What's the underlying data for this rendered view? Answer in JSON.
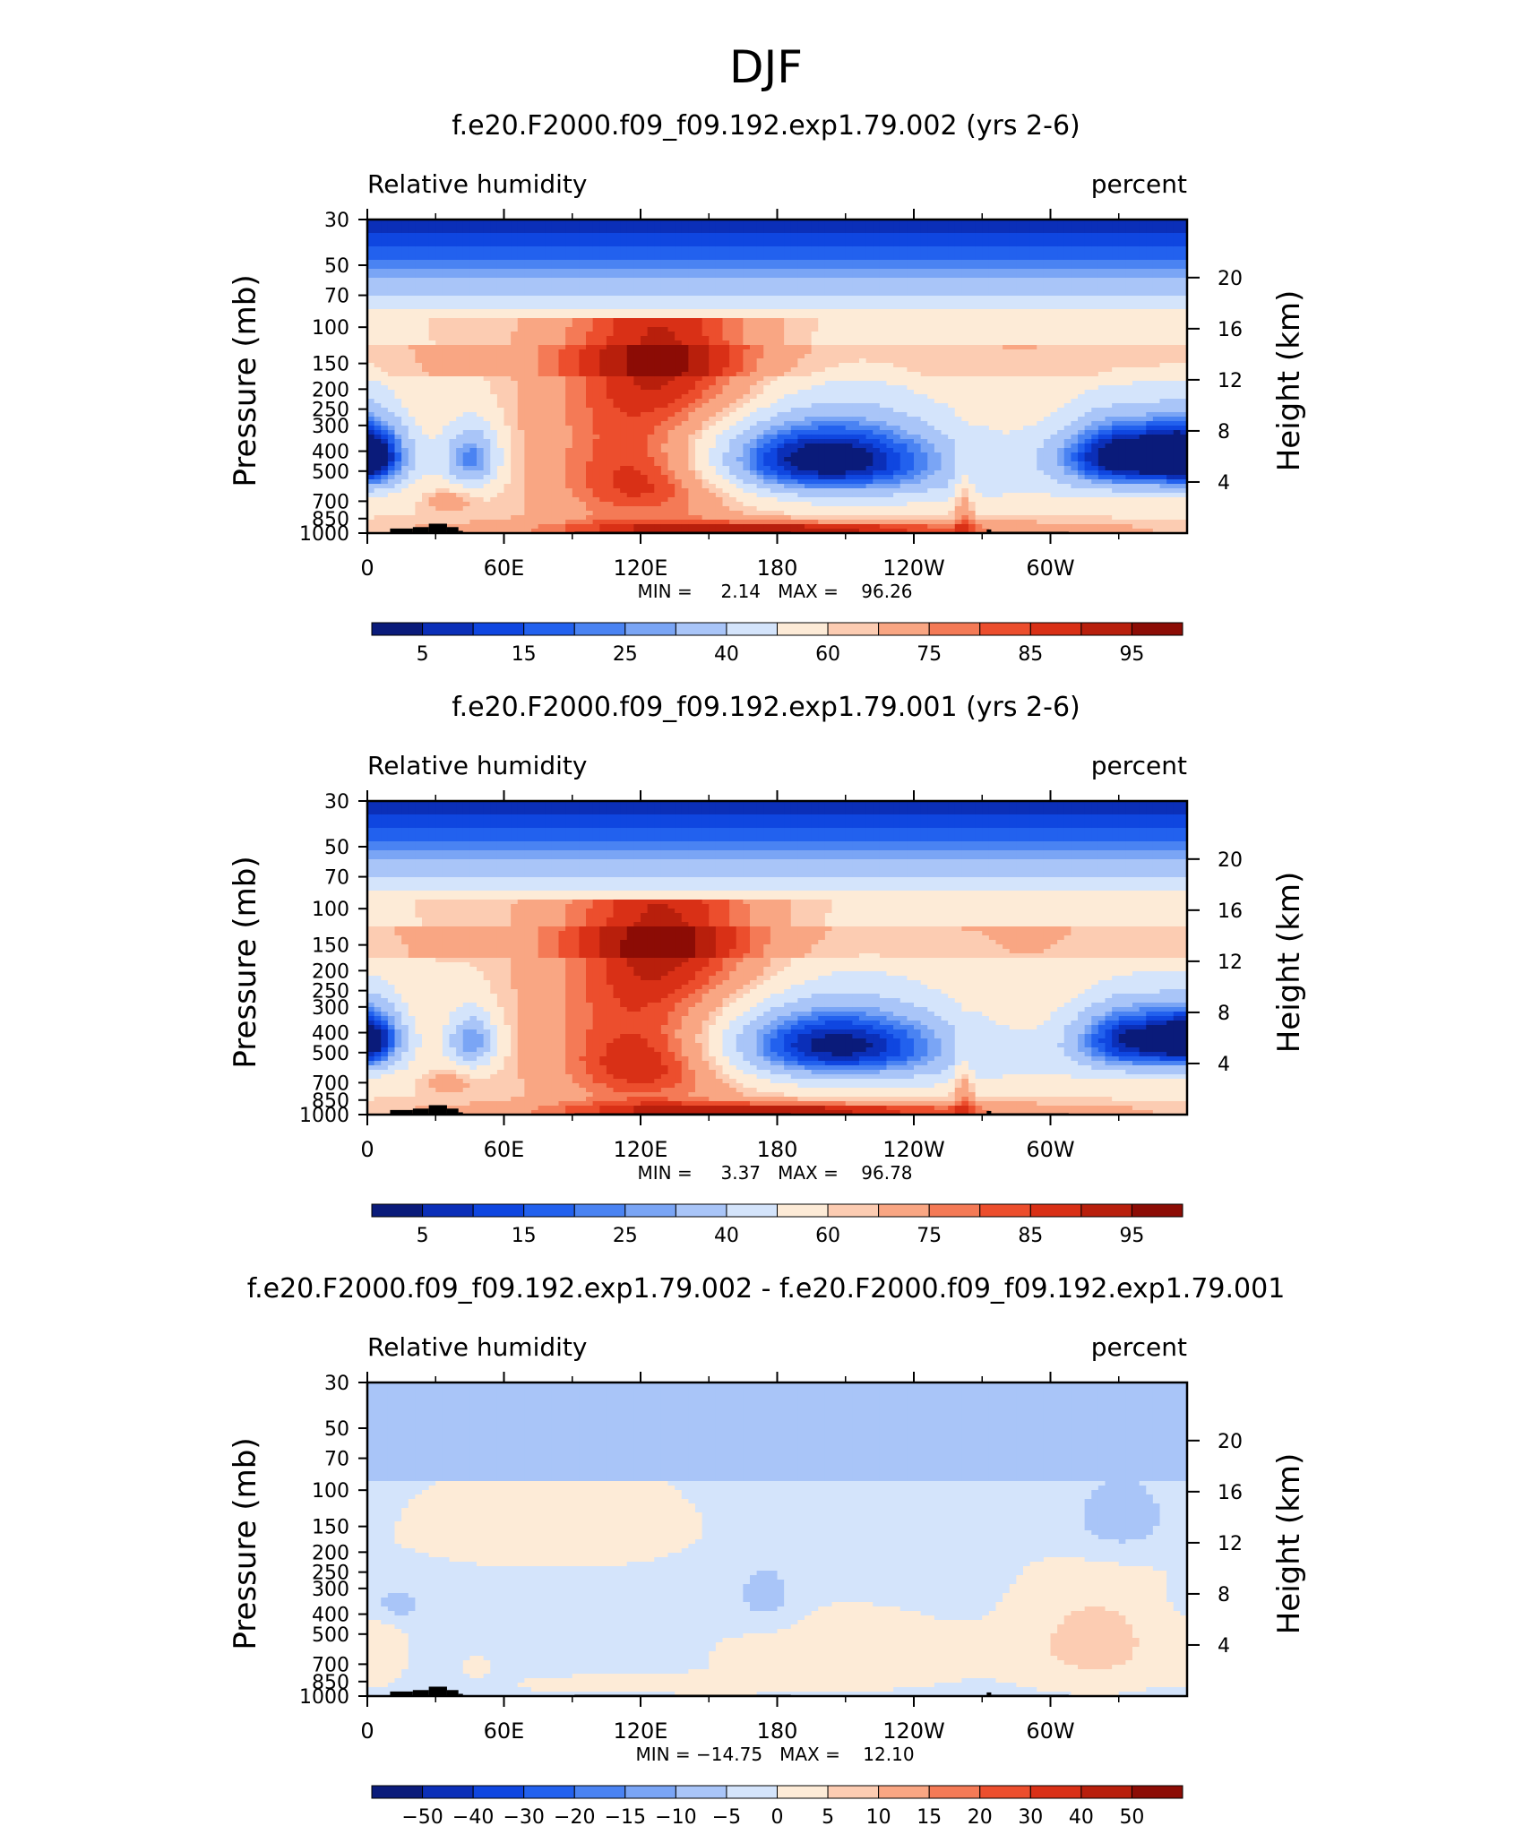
{
  "page": {
    "title": "DJF"
  },
  "colors": {
    "frame": "#000000",
    "terrain": "#000000",
    "text": "#000000"
  },
  "chart_data": [
    {
      "type": "heatmap",
      "title": "f.e20.F2000.f09_f09.192.exp1.79.002 (yrs 2-6)",
      "left_label": "Relative humidity",
      "right_label": "percent",
      "ylabel": "Pressure (mb)",
      "ylabel_right": "Height (km)",
      "xlabel": "",
      "x_ticks": [
        "0",
        "60E",
        "120E",
        "180",
        "120W",
        "60W"
      ],
      "y_ticks": [
        "30",
        "50",
        "70",
        "100",
        "150",
        "200",
        "250",
        "300",
        "400",
        "500",
        "700",
        "850",
        "1000"
      ],
      "y_ticks_right": [
        "20",
        "16",
        "12",
        "8",
        "4"
      ],
      "xlim": [
        0,
        360
      ],
      "ylim": [
        1000,
        30
      ],
      "stats_text": "MIN =     2.14   MAX =    96.26",
      "min": 2.14,
      "max": 96.26,
      "colorbar": {
        "labels": [
          "5",
          "15",
          "25",
          "40",
          "60",
          "75",
          "85",
          "95"
        ],
        "colors": [
          "#0a1b7a",
          "#0b2fb8",
          "#0f46e0",
          "#2261ee",
          "#4a83f2",
          "#7aa5f5",
          "#a9c5f8",
          "#d4e4fb",
          "#fdebd7",
          "#fcccb2",
          "#f9a683",
          "#f47a56",
          "#ec4e2d",
          "#d93016",
          "#b81f0c",
          "#8c0c05"
        ]
      },
      "field": {
        "baseline": 60,
        "features": [
          {
            "lon": 200,
            "p": 430,
            "sx": 40,
            "sp": 140,
            "amp": -60
          },
          {
            "lon": 333,
            "p": 420,
            "sx": 22,
            "sp": 120,
            "amp": -62
          },
          {
            "lon": 2,
            "p": 420,
            "sx": 12,
            "sp": 120,
            "amp": -45
          },
          {
            "lon": 46,
            "p": 430,
            "sx": 9,
            "sp": 110,
            "amp": -38
          },
          {
            "lon": 120,
            "p": 350,
            "sx": 32,
            "sp": 500,
            "amp": 24
          },
          {
            "lon": 125,
            "p": 560,
            "sx": 24,
            "sp": 140,
            "amp": 12
          },
          {
            "lon": 145,
            "p": 150,
            "sx": 30,
            "sp": 90,
            "amp": 14
          },
          {
            "lon": 180,
            "p": 960,
            "sx": 100,
            "sp": 70,
            "amp": 20
          },
          {
            "lon": 195,
            "p": 960,
            "sx": 45,
            "sp": 55,
            "amp": 14
          },
          {
            "lon": 262,
            "p": 750,
            "sx": 3,
            "sp": 220,
            "amp": 18
          },
          {
            "lon": 35,
            "p": 700,
            "sx": 7,
            "sp": 60,
            "amp": 14
          },
          {
            "lon": 250,
            "p": 600,
            "sx": 80,
            "sp": 150,
            "amp": -8
          }
        ]
      }
    },
    {
      "type": "heatmap",
      "title": "f.e20.F2000.f09_f09.192.exp1.79.001 (yrs 2-6)",
      "left_label": "Relative humidity",
      "right_label": "percent",
      "ylabel": "Pressure (mb)",
      "ylabel_right": "Height (km)",
      "xlabel": "",
      "x_ticks": [
        "0",
        "60E",
        "120E",
        "180",
        "120W",
        "60W"
      ],
      "y_ticks": [
        "30",
        "50",
        "70",
        "100",
        "150",
        "200",
        "250",
        "300",
        "400",
        "500",
        "700",
        "850",
        "1000"
      ],
      "y_ticks_right": [
        "20",
        "16",
        "12",
        "8",
        "4"
      ],
      "xlim": [
        0,
        360
      ],
      "ylim": [
        1000,
        30
      ],
      "stats_text": "MIN =     3.37   MAX =    96.78",
      "min": 3.37,
      "max": 96.78,
      "colorbar": {
        "labels": [
          "5",
          "15",
          "25",
          "40",
          "60",
          "75",
          "85",
          "95"
        ],
        "colors": [
          "#0a1b7a",
          "#0b2fb8",
          "#0f46e0",
          "#2261ee",
          "#4a83f2",
          "#7aa5f5",
          "#a9c5f8",
          "#d4e4fb",
          "#fdebd7",
          "#fcccb2",
          "#f9a683",
          "#f47a56",
          "#ec4e2d",
          "#d93016",
          "#b81f0c",
          "#8c0c05"
        ]
      },
      "field": {
        "baseline": 60,
        "features": [
          {
            "lon": 205,
            "p": 450,
            "sx": 38,
            "sp": 140,
            "amp": -55
          },
          {
            "lon": 337,
            "p": 430,
            "sx": 20,
            "sp": 120,
            "amp": -55
          },
          {
            "lon": 2,
            "p": 430,
            "sx": 10,
            "sp": 110,
            "amp": -40
          },
          {
            "lon": 46,
            "p": 440,
            "sx": 8,
            "sp": 100,
            "amp": -36
          },
          {
            "lon": 120,
            "p": 350,
            "sx": 32,
            "sp": 500,
            "amp": 24
          },
          {
            "lon": 125,
            "p": 580,
            "sx": 24,
            "sp": 140,
            "amp": 13
          },
          {
            "lon": 145,
            "p": 150,
            "sx": 30,
            "sp": 90,
            "amp": 14
          },
          {
            "lon": 180,
            "p": 960,
            "sx": 100,
            "sp": 70,
            "amp": 20
          },
          {
            "lon": 195,
            "p": 950,
            "sx": 45,
            "sp": 55,
            "amp": 14
          },
          {
            "lon": 262,
            "p": 750,
            "sx": 3,
            "sp": 220,
            "amp": 18
          },
          {
            "lon": 35,
            "p": 700,
            "sx": 7,
            "sp": 60,
            "amp": 14
          },
          {
            "lon": 250,
            "p": 600,
            "sx": 80,
            "sp": 150,
            "amp": -8
          }
        ]
      }
    },
    {
      "type": "heatmap",
      "title": "f.e20.F2000.f09_f09.192.exp1.79.002 - f.e20.F2000.f09_f09.192.exp1.79.001",
      "left_label": "Relative humidity",
      "right_label": "percent",
      "ylabel": "Pressure (mb)",
      "ylabel_right": "Height (km)",
      "xlabel": "",
      "x_ticks": [
        "0",
        "60E",
        "120E",
        "180",
        "120W",
        "60W"
      ],
      "y_ticks": [
        "30",
        "50",
        "70",
        "100",
        "150",
        "200",
        "250",
        "300",
        "400",
        "500",
        "700",
        "850",
        "1000"
      ],
      "y_ticks_right": [
        "20",
        "16",
        "12",
        "8",
        "4"
      ],
      "xlim": [
        0,
        360
      ],
      "ylim": [
        1000,
        30
      ],
      "stats_text": "MIN = −14.75   MAX =    12.10",
      "min": -14.75,
      "max": 12.1,
      "colorbar": {
        "labels": [
          "−50",
          "−40",
          "−30",
          "−20",
          "−15",
          "−10",
          "−5",
          "0",
          "5",
          "10",
          "15",
          "20",
          "30",
          "40",
          "50"
        ],
        "colors": [
          "#0a1b7a",
          "#0b2fb8",
          "#0f46e0",
          "#2261ee",
          "#4a83f2",
          "#7aa5f5",
          "#a9c5f8",
          "#d4e4fb",
          "#fdebd7",
          "#fcccb2",
          "#f9a683",
          "#f47a56",
          "#ec4e2d",
          "#d93016",
          "#b81f0c",
          "#8c0c05"
        ]
      },
      "field": {
        "baseline": -2,
        "features": [
          {
            "lon": 210,
            "p": 650,
            "sx": 40,
            "sp": 200,
            "amp": 6
          },
          {
            "lon": 320,
            "p": 550,
            "sx": 25,
            "sp": 250,
            "amp": 9
          },
          {
            "lon": 80,
            "p": 150,
            "sx": 45,
            "sp": 60,
            "amp": 6
          },
          {
            "lon": 175,
            "p": 330,
            "sx": 10,
            "sp": 90,
            "amp": -6
          },
          {
            "lon": 330,
            "p": 140,
            "sx": 18,
            "sp": 50,
            "amp": -8
          },
          {
            "lon": 10,
            "p": 360,
            "sx": 10,
            "sp": 60,
            "amp": -7
          },
          {
            "lon": 100,
            "p": 880,
            "sx": 25,
            "sp": 60,
            "amp": 5
          },
          {
            "lon": 150,
            "p": 880,
            "sx": 25,
            "sp": 60,
            "amp": 5
          },
          {
            "lon": 5,
            "p": 600,
            "sx": 8,
            "sp": 200,
            "amp": 5
          },
          {
            "lon": 48,
            "p": 720,
            "sx": 5,
            "sp": 80,
            "amp": 4
          }
        ]
      }
    }
  ]
}
